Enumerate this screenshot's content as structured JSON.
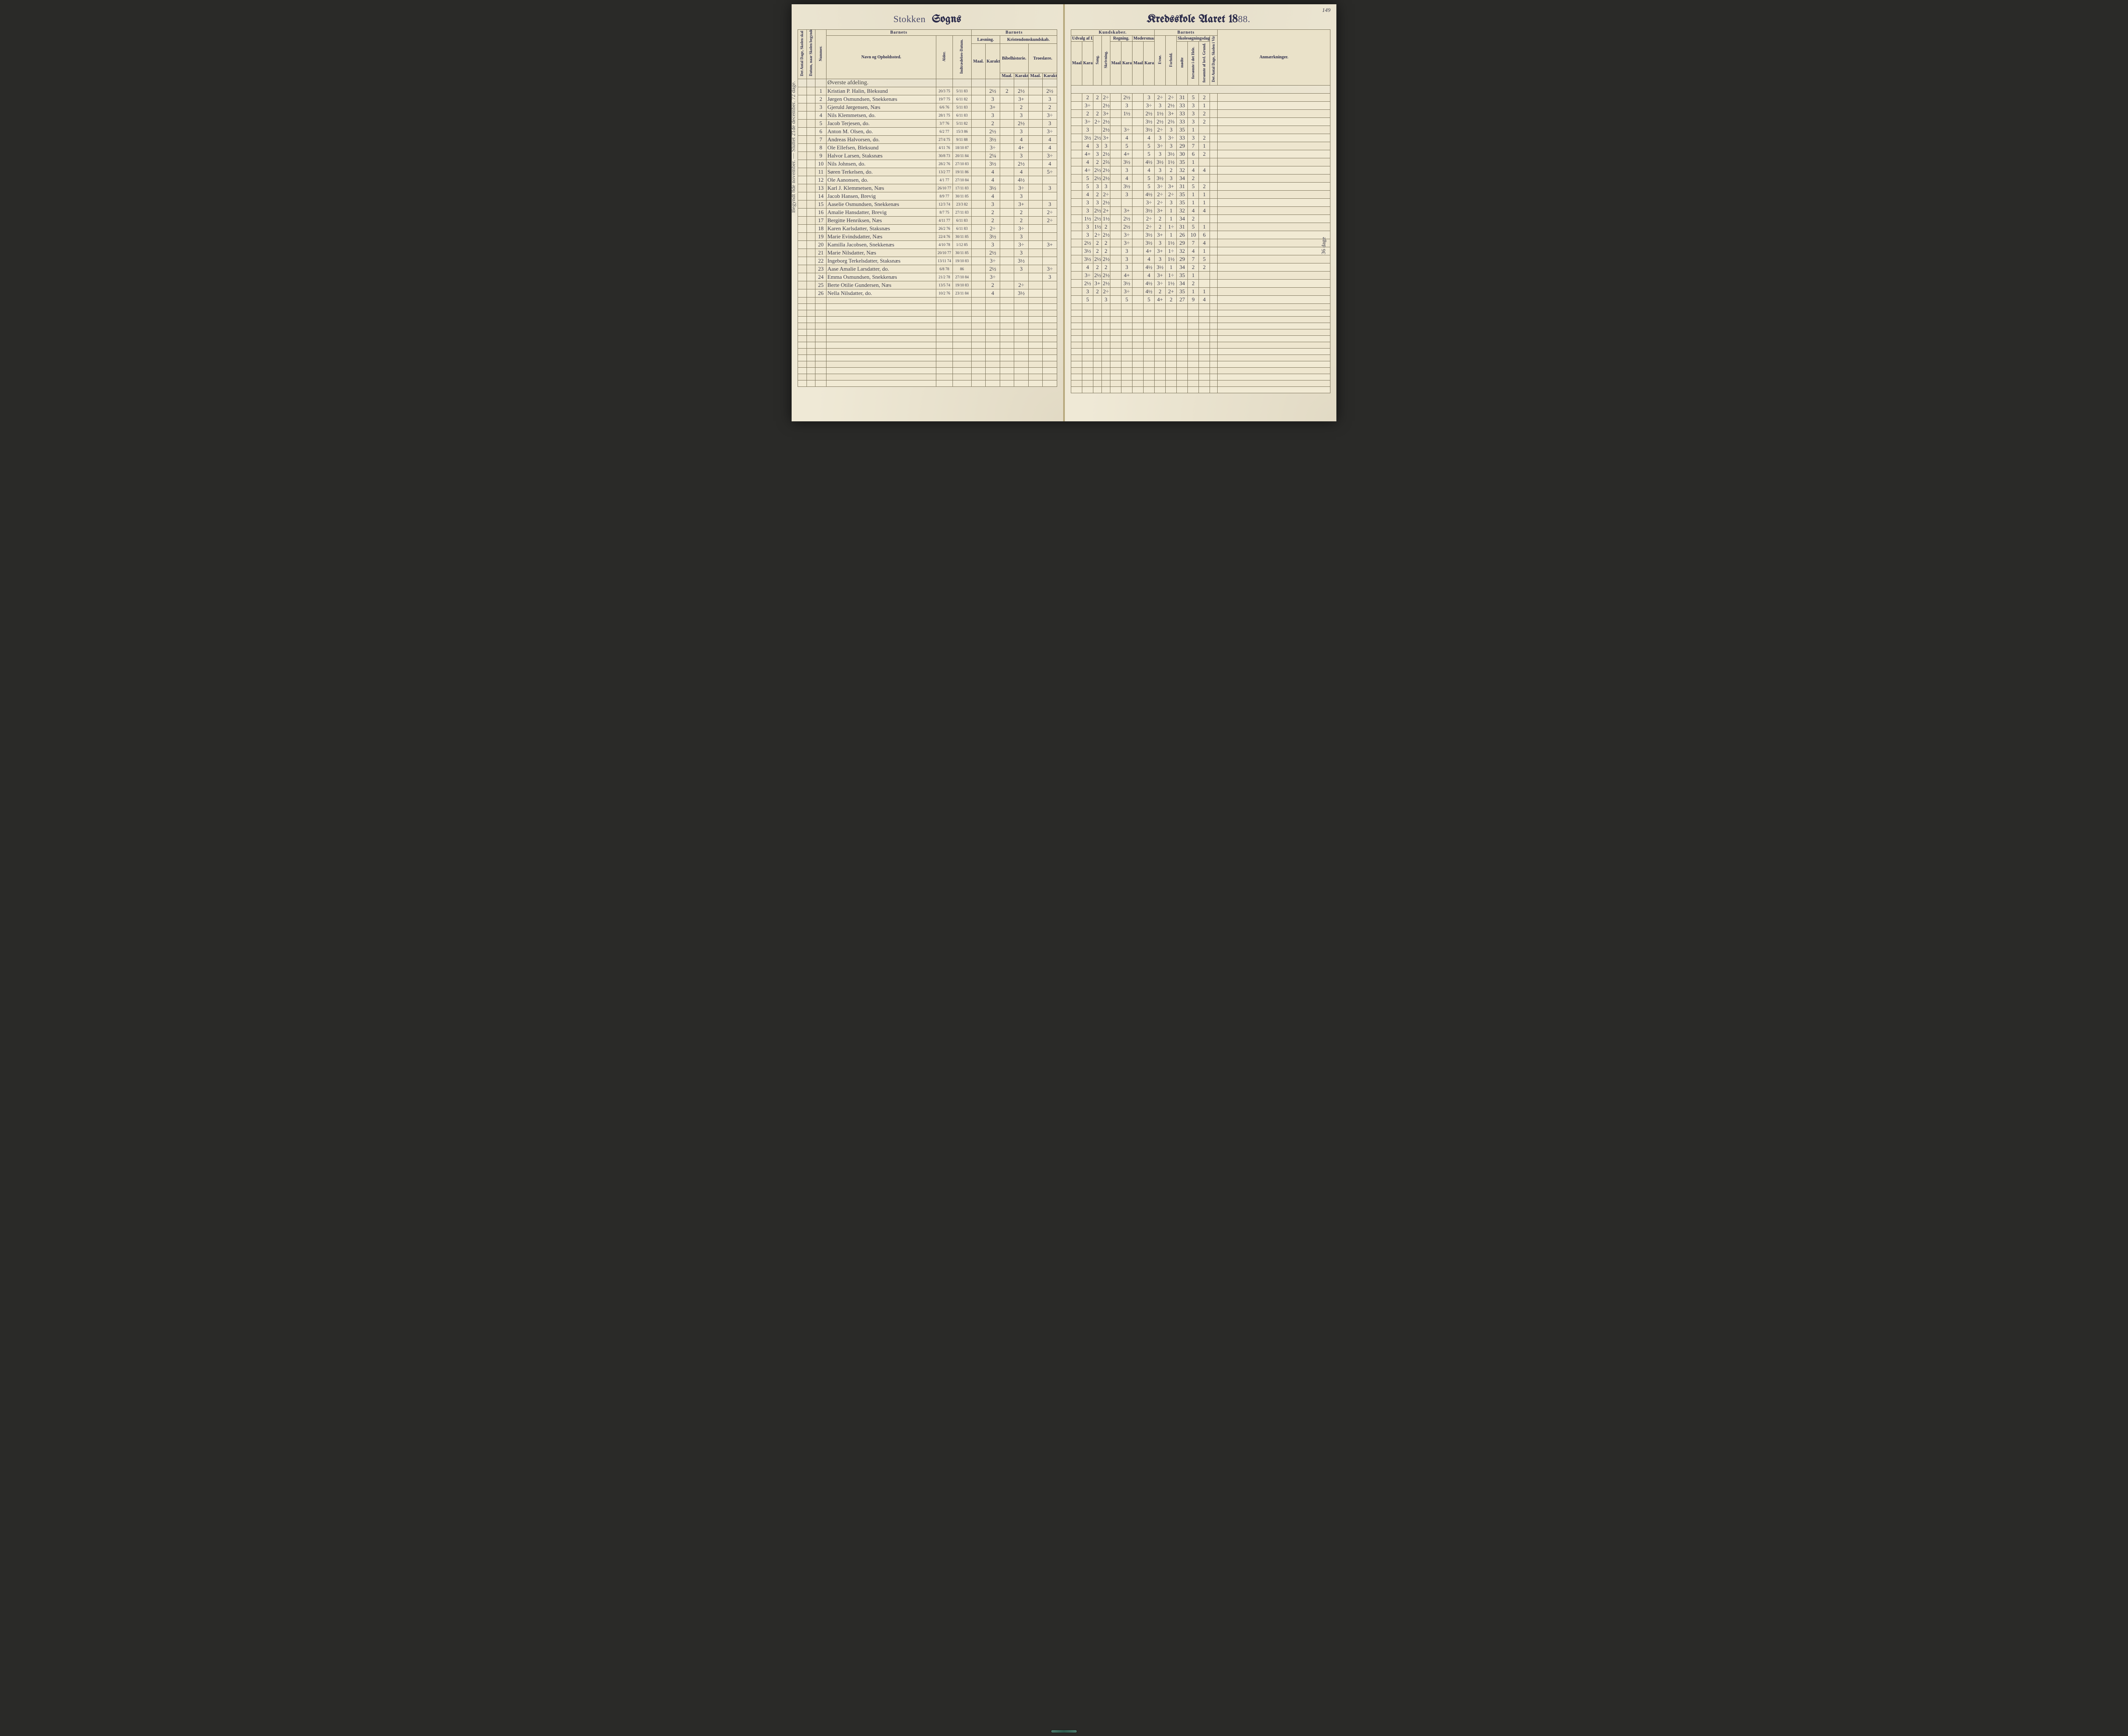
{
  "meta": {
    "page_number": "149",
    "parish_title_cursive": "Stokken",
    "parish_title_goth": "Sogns",
    "right_title_prefix": "Kredsskole Aaret 18",
    "right_title_year": "88.",
    "margin_note": "Begyndt 8de november. — Sluttet 21de december.   72 dage.",
    "right_margin_note": "36 dage"
  },
  "headers": {
    "left": {
      "col_antal_dage": "Det Antal Dage, Skolen skal holdes i Kredsen.",
      "col_datum": "Datum, naar Skolen begynder og slutter hver Omgang.",
      "col_nummer": "Nummer.",
      "section_barnets": "Barnets",
      "navn": "Navn og Opholdssted.",
      "alder": "Alder.",
      "indtr": "Indtrædelses-Datum.",
      "section_barnets2": "Barnets",
      "laesning": "Læsning.",
      "kristendom": "Kristendomskundskab.",
      "bibel": "Bibelhistorie.",
      "troes": "Troeslære.",
      "maal": "Maal.",
      "karakter": "Karakter."
    },
    "right": {
      "section_kundskaber": "Kundskaber.",
      "udvalg": "Udvalg af Læsebogen.",
      "sang": "Sang.",
      "skriv": "Skrivning.",
      "regning": "Regning.",
      "modersmaal": "Modersmaal",
      "maal": "Maal.",
      "karakter": "Karakter.",
      "section_barnets": "Barnets",
      "evne": "Evne.",
      "forhold": "Forhold.",
      "skoledage": "Skolesøgningsdage.",
      "modte": "mødte",
      "fors_hele": "forsømte i det Hele.",
      "fors_lovl": "forsømte af lovl. Grund.",
      "antal_virk": "Det Antal Dage, Skolen i Virkeligheden er holdt.",
      "anm": "Anmærkninger."
    },
    "section_row": "Øverste afdeling."
  },
  "rows": [
    {
      "n": "1",
      "name": "Kristian P. Halin, Bleksund",
      "age": "20/3 75",
      "ind": "5/11 83",
      "l_m": "",
      "l_k": "2½",
      "b_m": "2",
      "b_k": "2½",
      "t_m": "",
      "t_k": "2½",
      "u_m": "",
      "u_k": "2",
      "sa": "2",
      "sk": "2÷",
      "r_m": "",
      "r_k": "2½",
      "m_m": "",
      "m_k": "3",
      "ev": "2÷",
      "fh": "2÷",
      "md": "31",
      "f1": "5",
      "f2": "2"
    },
    {
      "n": "2",
      "name": "Jørgen Osmundsen, Snekkenæs",
      "age": "19/7 75",
      "ind": "6/11 82",
      "l_m": "",
      "l_k": "3",
      "b_m": "",
      "b_k": "3+",
      "t_m": "",
      "t_k": "3",
      "u_m": "",
      "u_k": "3÷",
      "sa": "",
      "sk": "2½",
      "r_m": "",
      "r_k": "3",
      "m_m": "",
      "m_k": "3÷",
      "ev": "3",
      "fh": "2½",
      "md": "33",
      "f1": "3",
      "f2": "1"
    },
    {
      "n": "3",
      "name": "Gjeruld Jørgensen, Næs",
      "age": "6/6 76",
      "ind": "5/11 83",
      "l_m": "",
      "l_k": "3+",
      "b_m": "",
      "b_k": "2",
      "t_m": "",
      "t_k": "2",
      "u_m": "",
      "u_k": "2",
      "sa": "2",
      "sk": "3+",
      "r_m": "",
      "r_k": "1½",
      "m_m": "",
      "m_k": "2½",
      "ev": "1½",
      "fh": "3+",
      "md": "33",
      "f1": "3",
      "f2": "2"
    },
    {
      "n": "4",
      "name": "Nils Klemmetsen, do.",
      "age": "28/1 75",
      "ind": "6/11 83",
      "l_m": "",
      "l_k": "3",
      "b_m": "",
      "b_k": "3",
      "t_m": "",
      "t_k": "3÷",
      "u_m": "",
      "u_k": "3÷",
      "sa": "2÷",
      "sk": "2½",
      "r_m": "",
      "r_k": "",
      "m_m": "",
      "m_k": "3½",
      "ev": "2½",
      "fh": "2⅔",
      "md": "33",
      "f1": "3",
      "f2": "2"
    },
    {
      "n": "5",
      "name": "Jacob Terjesen, do.",
      "age": "3/7 76",
      "ind": "5/11 82",
      "l_m": "",
      "l_k": "2",
      "b_m": "",
      "b_k": "2½",
      "t_m": "",
      "t_k": "3",
      "u_m": "",
      "u_k": "3",
      "sa": "",
      "sk": "2½",
      "r_m": "",
      "r_k": "3÷",
      "m_m": "",
      "m_k": "3½",
      "ev": "2÷",
      "fh": "3",
      "md": "35",
      "f1": "1",
      "f2": ""
    },
    {
      "n": "6",
      "name": "Anton M. Olsen, do.",
      "age": "6/2 77",
      "ind": "15/3 86",
      "l_m": "",
      "l_k": "2½",
      "b_m": "",
      "b_k": "3",
      "t_m": "",
      "t_k": "3÷",
      "u_m": "",
      "u_k": "3½",
      "sa": "2½",
      "sk": "3+",
      "r_m": "",
      "r_k": "4",
      "m_m": "",
      "m_k": "4",
      "ev": "3",
      "fh": "3÷",
      "md": "33",
      "f1": "3",
      "f2": "2"
    },
    {
      "n": "7",
      "name": "Andreas Halvorsen, do.",
      "age": "27/4 75",
      "ind": "9/11 88",
      "l_m": "",
      "l_k": "3½",
      "b_m": "",
      "b_k": "4",
      "t_m": "",
      "t_k": "4",
      "u_m": "",
      "u_k": "4",
      "sa": "3",
      "sk": "3",
      "r_m": "",
      "r_k": "5",
      "m_m": "",
      "m_k": "5",
      "ev": "3÷",
      "fh": "3",
      "md": "29",
      "f1": "7",
      "f2": "1"
    },
    {
      "n": "8",
      "name": "Ole Ellefsen, Bleksund",
      "age": "4/11 76",
      "ind": "18/10 87",
      "l_m": "",
      "l_k": "3÷",
      "b_m": "",
      "b_k": "4+",
      "t_m": "",
      "t_k": "4",
      "u_m": "",
      "u_k": "4+",
      "sa": "3",
      "sk": "2½",
      "r_m": "",
      "r_k": "4+",
      "m_m": "",
      "m_k": "5",
      "ev": "3",
      "fh": "3½",
      "md": "30",
      "f1": "6",
      "f2": "2"
    },
    {
      "n": "9",
      "name": "Halvor Larsen, Staksnæs",
      "age": "30/8 73",
      "ind": "20/11 84",
      "l_m": "",
      "l_k": "2¼",
      "b_m": "",
      "b_k": "3",
      "t_m": "",
      "t_k": "3÷",
      "u_m": "",
      "u_k": "4",
      "sa": "2",
      "sk": "2⅔",
      "r_m": "",
      "r_k": "3½",
      "m_m": "",
      "m_k": "4½",
      "ev": "3½",
      "fh": "1½",
      "md": "35",
      "f1": "1",
      "f2": ""
    },
    {
      "n": "10",
      "name": "Nils Johnsen, do.",
      "age": "28/2 76",
      "ind": "27/10 83",
      "l_m": "",
      "l_k": "3½",
      "b_m": "",
      "b_k": "2½",
      "t_m": "",
      "t_k": "4",
      "u_m": "",
      "u_k": "4÷",
      "sa": "2½",
      "sk": "2½",
      "r_m": "",
      "r_k": "3",
      "m_m": "",
      "m_k": "4",
      "ev": "3",
      "fh": "2",
      "md": "32",
      "f1": "4",
      "f2": "4"
    },
    {
      "n": "11",
      "name": "Søren Terkelsen, do.",
      "age": "13/2 77",
      "ind": "19/11 86",
      "l_m": "",
      "l_k": "4",
      "b_m": "",
      "b_k": "4",
      "t_m": "",
      "t_k": "5÷",
      "u_m": "",
      "u_k": "5",
      "sa": "2½",
      "sk": "2½",
      "r_m": "",
      "r_k": "4",
      "m_m": "",
      "m_k": "5",
      "ev": "3½",
      "fh": "3",
      "md": "34",
      "f1": "2",
      "f2": ""
    },
    {
      "n": "12",
      "name": "Ole Aanonsen, do.",
      "age": "4/1 77",
      "ind": "27/10 84",
      "l_m": "",
      "l_k": "4",
      "b_m": "",
      "b_k": "4½",
      "t_m": "",
      "t_k": "",
      "u_m": "",
      "u_k": "5",
      "sa": "3",
      "sk": "3",
      "r_m": "",
      "r_k": "3½",
      "m_m": "",
      "m_k": "5",
      "ev": "3÷",
      "fh": "3+",
      "md": "31",
      "f1": "5",
      "f2": "2"
    },
    {
      "n": "13",
      "name": "Karl J. Klemmetsen, Næs",
      "age": "26/10 77",
      "ind": "17/11 83",
      "l_m": "",
      "l_k": "3½",
      "b_m": "",
      "b_k": "3÷",
      "t_m": "",
      "t_k": "3",
      "u_m": "",
      "u_k": "4",
      "sa": "2",
      "sk": "2÷",
      "r_m": "",
      "r_k": "3",
      "m_m": "",
      "m_k": "4½",
      "ev": "2÷",
      "fh": "2÷",
      "md": "35",
      "f1": "1",
      "f2": "1"
    },
    {
      "n": "14",
      "name": "Jacob Hansen, Brevig",
      "age": "8/9 77",
      "ind": "30/11 85",
      "l_m": "",
      "l_k": "4",
      "b_m": "",
      "b_k": "3",
      "t_m": "",
      "t_k": "",
      "u_m": "",
      "u_k": "3",
      "sa": "3",
      "sk": "2½",
      "r_m": "",
      "r_k": "",
      "m_m": "",
      "m_k": "3÷",
      "ev": "2÷",
      "fh": "3",
      "md": "35",
      "f1": "1",
      "f2": "1"
    },
    {
      "n": "15",
      "name": "Aaselie Osmundsen, Snekkenæs",
      "age": "12/3 74",
      "ind": "23/3 82",
      "l_m": "",
      "l_k": "3",
      "b_m": "",
      "b_k": "3+",
      "t_m": "",
      "t_k": "3",
      "u_m": "",
      "u_k": "3",
      "sa": "2½",
      "sk": "2+",
      "r_m": "",
      "r_k": "3+",
      "m_m": "",
      "m_k": "3½",
      "ev": "3+",
      "fh": "1",
      "md": "32",
      "f1": "4",
      "f2": "4"
    },
    {
      "n": "16",
      "name": "Amalie Hansdatter, Brevig",
      "age": "8/7 75",
      "ind": "27/11 83",
      "l_m": "",
      "l_k": "2",
      "b_m": "",
      "b_k": "2",
      "t_m": "",
      "t_k": "2÷",
      "u_m": "",
      "u_k": "1½",
      "sa": "2½",
      "sk": "1½",
      "r_m": "",
      "r_k": "2½",
      "m_m": "",
      "m_k": "2÷",
      "ev": "2",
      "fh": "1",
      "md": "34",
      "f1": "2",
      "f2": ""
    },
    {
      "n": "17",
      "name": "Bergitte Henriksen, Næs",
      "age": "4/11 77",
      "ind": "6/11 83",
      "l_m": "",
      "l_k": "2",
      "b_m": "",
      "b_k": "2",
      "t_m": "",
      "t_k": "2÷",
      "u_m": "",
      "u_k": "3",
      "sa": "1½",
      "sk": "2",
      "r_m": "",
      "r_k": "2½",
      "m_m": "",
      "m_k": "2÷",
      "ev": "2",
      "fh": "1÷",
      "md": "31",
      "f1": "5",
      "f2": "1"
    },
    {
      "n": "18",
      "name": "Karen Karlsdatter, Staksnæs",
      "age": "26/2 76",
      "ind": "6/11 83",
      "l_m": "",
      "l_k": "2÷",
      "b_m": "",
      "b_k": "3÷",
      "t_m": "",
      "t_k": "",
      "u_m": "",
      "u_k": "3",
      "sa": "2÷",
      "sk": "2½",
      "r_m": "",
      "r_k": "3÷",
      "m_m": "",
      "m_k": "3½",
      "ev": "3+",
      "fh": "1",
      "md": "26",
      "f1": "10",
      "f2": "6"
    },
    {
      "n": "19",
      "name": "Marie Evindsdatter, Næs",
      "age": "22/4 76",
      "ind": "30/11 85",
      "l_m": "",
      "l_k": "3½",
      "b_m": "",
      "b_k": "3",
      "t_m": "",
      "t_k": "",
      "u_m": "",
      "u_k": "2½",
      "sa": "2",
      "sk": "2",
      "r_m": "",
      "r_k": "3÷",
      "m_m": "",
      "m_k": "3½",
      "ev": "3",
      "fh": "1½",
      "md": "29",
      "f1": "7",
      "f2": "4"
    },
    {
      "n": "20",
      "name": "Kamilla Jacobsen, Snekkenæs",
      "age": "4/10 78",
      "ind": "1/12 85",
      "l_m": "",
      "l_k": "3",
      "b_m": "",
      "b_k": "3÷",
      "t_m": "",
      "t_k": "3+",
      "u_m": "",
      "u_k": "3½",
      "sa": "2",
      "sk": "2",
      "r_m": "",
      "r_k": "3",
      "m_m": "",
      "m_k": "4+",
      "ev": "3+",
      "fh": "1÷",
      "md": "32",
      "f1": "4",
      "f2": "1"
    },
    {
      "n": "21",
      "name": "Marie Nilsdatter, Næs",
      "age": "20/10 77",
      "ind": "30/11 85",
      "l_m": "",
      "l_k": "2½",
      "b_m": "",
      "b_k": "3",
      "t_m": "",
      "t_k": "",
      "u_m": "",
      "u_k": "3½",
      "sa": "2½",
      "sk": "2½",
      "r_m": "",
      "r_k": "3",
      "m_m": "",
      "m_k": "4",
      "ev": "3",
      "fh": "1½",
      "md": "29",
      "f1": "7",
      "f2": "5"
    },
    {
      "n": "22",
      "name": "Ingeborg Terkelsdatter, Staksnæs",
      "age": "13/11 74",
      "ind": "19/10 83",
      "l_m": "",
      "l_k": "3÷",
      "b_m": "",
      "b_k": "3½",
      "t_m": "",
      "t_k": "",
      "u_m": "",
      "u_k": "4",
      "sa": "2",
      "sk": "2",
      "r_m": "",
      "r_k": "3",
      "m_m": "",
      "m_k": "4½",
      "ev": "3½",
      "fh": "1",
      "md": "34",
      "f1": "2",
      "f2": "2"
    },
    {
      "n": "23",
      "name": "Aase Amalie Larsdatter, do.",
      "age": "6/8 78",
      "ind": "86",
      "l_m": "",
      "l_k": "2½",
      "b_m": "",
      "b_k": "3",
      "t_m": "",
      "t_k": "3÷",
      "u_m": "",
      "u_k": "3÷",
      "sa": "2½",
      "sk": "2½",
      "r_m": "",
      "r_k": "4+",
      "m_m": "",
      "m_k": "4",
      "ev": "3+",
      "fh": "1÷",
      "md": "35",
      "f1": "1",
      "f2": ""
    },
    {
      "n": "24",
      "name": "Emma Osmundsen, Snekkenæs",
      "age": "21/2 78",
      "ind": "27/10 84",
      "l_m": "",
      "l_k": "3÷",
      "b_m": "",
      "b_k": "",
      "t_m": "",
      "t_k": "3",
      "u_m": "",
      "u_k": "2½",
      "sa": "3+",
      "sk": "2½",
      "r_m": "",
      "r_k": "3½",
      "m_m": "",
      "m_k": "4½",
      "ev": "3÷",
      "fh": "1½",
      "md": "34",
      "f1": "2",
      "f2": ""
    },
    {
      "n": "25",
      "name": "Berte Otilie Gundersen, Næs",
      "age": "13/5 74",
      "ind": "19/10 83",
      "l_m": "",
      "l_k": "2",
      "b_m": "",
      "b_k": "2÷",
      "t_m": "",
      "t_k": "",
      "u_m": "",
      "u_k": "3",
      "sa": "2",
      "sk": "2÷",
      "r_m": "",
      "r_k": "3÷",
      "m_m": "",
      "m_k": "4½",
      "ev": "2",
      "fh": "2+",
      "md": "35",
      "f1": "1",
      "f2": "1"
    },
    {
      "n": "26",
      "name": "Nella Nilsdatter, do.",
      "age": "10/2 76",
      "ind": "23/11 84",
      "l_m": "",
      "l_k": "4",
      "b_m": "",
      "b_k": "3½",
      "t_m": "",
      "t_k": "",
      "u_m": "",
      "u_k": "5",
      "sa": "",
      "sk": "3",
      "r_m": "",
      "r_k": "5",
      "m_m": "",
      "m_k": "5",
      "ev": "4+",
      "fh": "2",
      "md": "27",
      "f1": "9",
      "f2": "4"
    }
  ]
}
